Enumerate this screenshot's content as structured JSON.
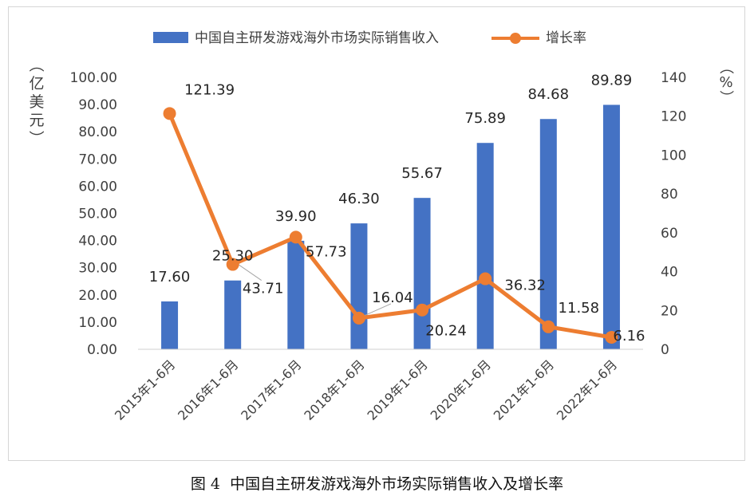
{
  "figure": {
    "caption_prefix": "图 4",
    "caption_text": "中国自主研发游戏海外市场实际销售收入及增长率"
  },
  "chart_data": {
    "type": "bar",
    "categories": [
      "2015年1-6月",
      "2016年1-6月",
      "2017年1-6月",
      "2018年1-6月",
      "2019年1-6月",
      "2020年1-6月",
      "2021年1-6月",
      "2022年1-6月"
    ],
    "series": [
      {
        "name": "中国自主研发游戏海外市场实际销售收入",
        "type": "bar",
        "axis": "left",
        "color": "#4472c4",
        "values": [
          17.6,
          25.3,
          39.9,
          46.3,
          55.67,
          75.89,
          84.68,
          89.89
        ],
        "value_labels": [
          "17.60",
          "25.30",
          "39.90",
          "46.30",
          "55.67",
          "75.89",
          "84.68",
          "89.89"
        ]
      },
      {
        "name": "增长率",
        "type": "line",
        "axis": "right",
        "color": "#ed7d31",
        "values": [
          121.39,
          43.71,
          57.73,
          16.04,
          20.24,
          36.32,
          11.58,
          6.16
        ],
        "value_labels": [
          "121.39",
          "43.71",
          "57.73",
          "16.04",
          "20.24",
          "36.32",
          "11.58",
          "6.16"
        ]
      }
    ],
    "y_left": {
      "label": "（亿美元）",
      "range": [
        0,
        100
      ],
      "ticks": [
        "0.00",
        "10.00",
        "20.00",
        "30.00",
        "40.00",
        "50.00",
        "60.00",
        "70.00",
        "80.00",
        "90.00",
        "100.00"
      ]
    },
    "y_right": {
      "label": "（%）",
      "range": [
        0,
        140
      ],
      "ticks": [
        "0",
        "20",
        "40",
        "60",
        "80",
        "100",
        "120",
        "140"
      ]
    },
    "grid": false,
    "legend_position": "top"
  }
}
